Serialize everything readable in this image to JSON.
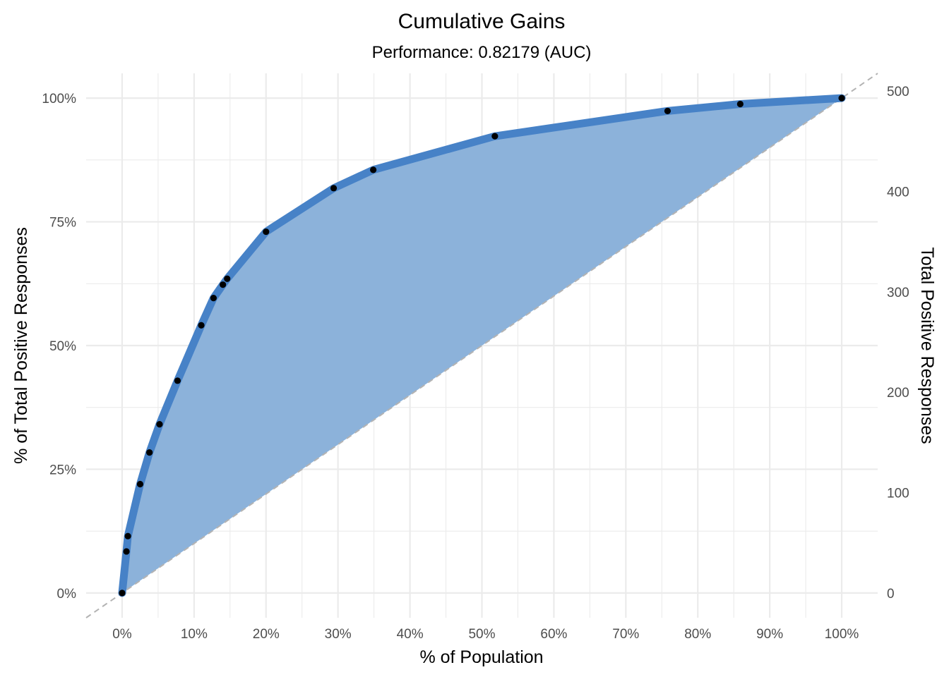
{
  "chart_data": {
    "type": "area",
    "title": "Cumulative Gains",
    "subtitle": "Performance: 0.82179 (AUC)",
    "xlabel": "% of Population",
    "ylabel": "% of Total Positive Responses",
    "ylabel_right": "Total Positive Responses",
    "xlim": [
      -5,
      105
    ],
    "ylim": [
      -5,
      105
    ],
    "x_ticks": [
      0,
      10,
      20,
      30,
      40,
      50,
      60,
      70,
      80,
      90,
      100
    ],
    "x_tick_labels": [
      "0%",
      "10%",
      "20%",
      "30%",
      "40%",
      "50%",
      "60%",
      "70%",
      "80%",
      "90%",
      "100%"
    ],
    "y_ticks": [
      0,
      25,
      50,
      75,
      100
    ],
    "y_tick_labels": [
      "0%",
      "25%",
      "50%",
      "75%",
      "100%"
    ],
    "y2_ticks": [
      0,
      100,
      200,
      300,
      400,
      500
    ],
    "y2_tick_labels": [
      "0",
      "100",
      "200",
      "300",
      "400",
      "500"
    ],
    "y2_total": 493,
    "grid": true,
    "baseline": "diagonal (random model)",
    "series": [
      {
        "x": [
          0,
          0.6,
          0.8,
          2.5,
          3.8,
          5.2,
          7.7,
          11.0,
          12.7,
          14.0,
          14.6,
          20.0,
          29.4,
          34.9,
          51.8,
          75.8,
          85.9,
          100
        ],
        "y": [
          0,
          8.4,
          11.5,
          22.0,
          28.4,
          34.1,
          42.9,
          54.1,
          59.6,
          62.3,
          63.5,
          73.0,
          81.8,
          85.5,
          92.3,
          97.4,
          98.8,
          100
        ]
      }
    ],
    "colors": {
      "line": "#4782c7",
      "fill": "#8cb2da",
      "points": "#000000",
      "baseline": "#b3b3b3",
      "grid": "#ebebeb"
    }
  }
}
